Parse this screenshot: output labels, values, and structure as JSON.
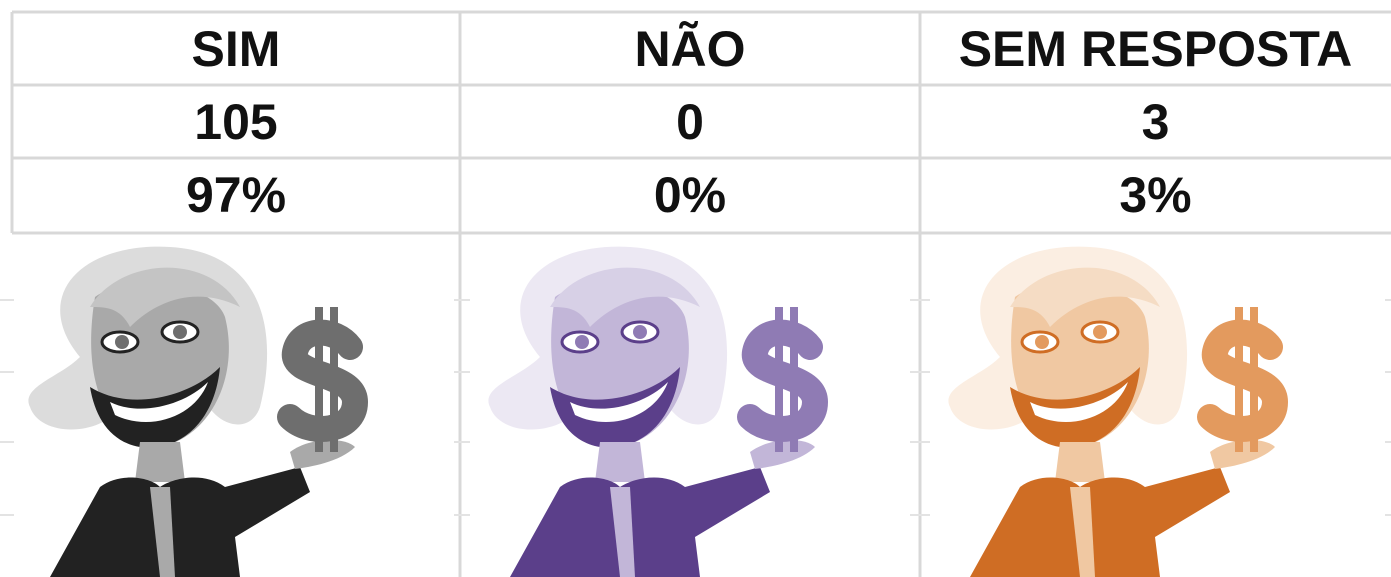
{
  "table": {
    "columns": [
      "SIM",
      "NÃO",
      "SEM RESPOSTA"
    ],
    "rows": [
      [
        "105",
        "0",
        "3"
      ],
      [
        "97%",
        "0%",
        "3%"
      ]
    ]
  }
}
